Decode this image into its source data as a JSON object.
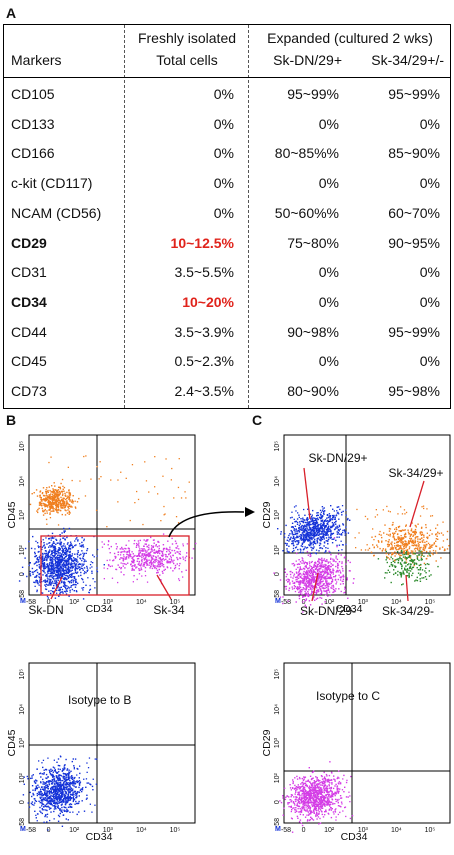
{
  "panel_labels": {
    "a": "A",
    "b": "B",
    "c": "C"
  },
  "table": {
    "header": {
      "markers": "Markers",
      "fresh_line1": "Freshly isolated",
      "fresh_line2": "Total cells",
      "expanded": "Expanded (cultured 2 wks)",
      "sk_dn": "Sk-DN/29+",
      "sk_34": "Sk-34/29+/-"
    },
    "rows": [
      {
        "marker": "CD105",
        "fresh": "0%",
        "dn": "95~99%",
        "s34": "95~99%",
        "bold": false,
        "red": false
      },
      {
        "marker": "CD133",
        "fresh": "0%",
        "dn": "0%",
        "s34": "0%",
        "bold": false,
        "red": false
      },
      {
        "marker": "CD166",
        "fresh": "0%",
        "dn": "80~85%%",
        "s34": "85~90%",
        "bold": false,
        "red": false
      },
      {
        "marker": "c-kit (CD117)",
        "fresh": "0%",
        "dn": "0%",
        "s34": "0%",
        "bold": false,
        "red": false
      },
      {
        "marker": "NCAM (CD56)",
        "fresh": "0%",
        "dn": "50~60%%",
        "s34": "60~70%",
        "bold": false,
        "red": false
      },
      {
        "marker": "CD29",
        "fresh": "10~12.5%",
        "dn": "75~80%",
        "s34": "90~95%",
        "bold": true,
        "red": true
      },
      {
        "marker": "CD31",
        "fresh": "3.5~5.5%",
        "dn": "0%",
        "s34": "0%",
        "bold": false,
        "red": false
      },
      {
        "marker": "CD34",
        "fresh": "10~20%",
        "dn": "0%",
        "s34": "0%",
        "bold": true,
        "red": true
      },
      {
        "marker": "CD44",
        "fresh": "3.5~3.9%",
        "dn": "90~98%",
        "s34": "95~99%",
        "bold": false,
        "red": false
      },
      {
        "marker": "CD45",
        "fresh": "0.5~2.3%",
        "dn": "0%",
        "s34": "0%",
        "bold": false,
        "red": false
      },
      {
        "marker": "CD73",
        "fresh": "2.4~3.5%",
        "dn": "80~90%",
        "s34": "95~98%",
        "bold": false,
        "red": false
      }
    ]
  },
  "plots": {
    "b_top": {
      "ylabel": "CD45",
      "xlabel": "CD34",
      "label_dn": "Sk-DN",
      "label_34": "Sk-34"
    },
    "c_top": {
      "ylabel": "CD29",
      "xlabel": "CD34",
      "label_dn_pos": "Sk-DN/29+",
      "label_34_pos": "Sk-34/29+",
      "label_dn_neg": "Sk-DN/29-",
      "label_34_neg": "Sk-34/29-"
    },
    "b_bottom": {
      "ylabel": "CD45",
      "xlabel": "CD34",
      "note": "Isotype to B"
    },
    "c_bottom": {
      "ylabel": "CD29",
      "xlabel": "CD34",
      "note": "Isotype to C"
    },
    "ticks_x": [
      "-58",
      "0",
      "10²",
      "10³",
      "10⁴",
      "10⁵"
    ],
    "ticks_y": [
      "-58",
      "0",
      "10²",
      "10³",
      "10⁴",
      "10⁵"
    ],
    "m_mark": "M"
  },
  "colors": {
    "orange": "#f07f1f",
    "blue": "#1432d8",
    "magenta": "#d43ce6",
    "green": "#2c8a2c",
    "red": "#d8202a",
    "red_text": "#e0231b"
  }
}
